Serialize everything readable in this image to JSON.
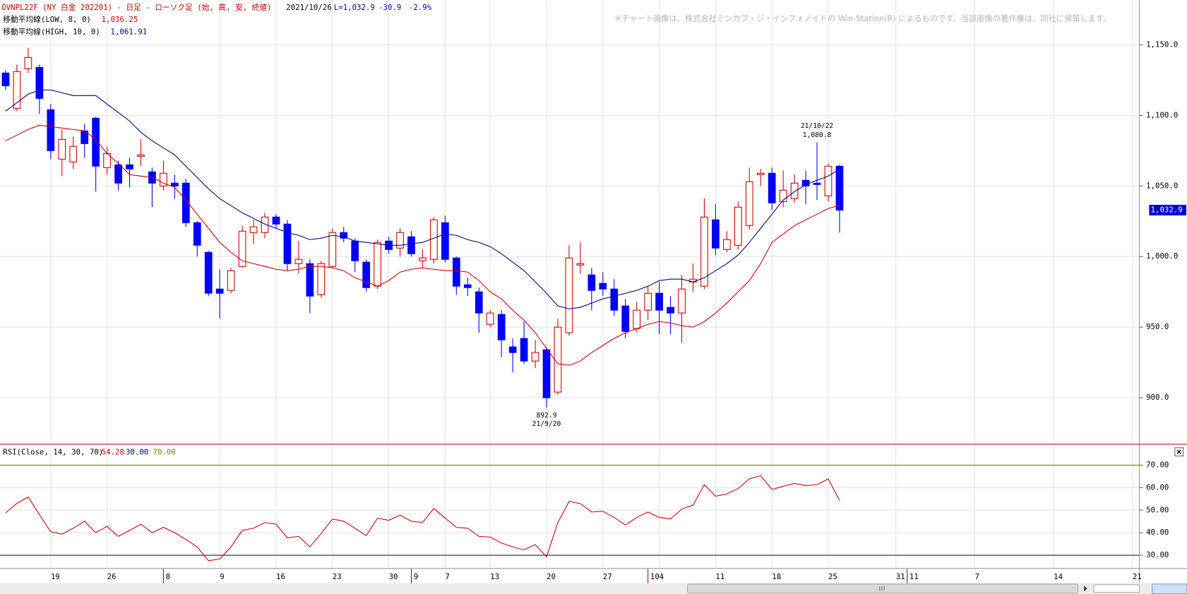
{
  "header": {
    "date": "2021/10/26",
    "last": "L=1,032.9",
    "change": "-30.9",
    "change_pct": "-2.9%"
  },
  "notice": "※チャート画像は、株式会社ミンカブ・ジ・インフォノイドの Win-Station(R) によるものです。当該画像の著作権は、同社に帰属します。",
  "chart_data": [
    {
      "type": "candlestick",
      "title": "OVNPL22F (NY 白金 202201) - 日足 - ローソク足 (始, 高, 安, 終値)",
      "up_color": "#cc0000",
      "down_color": "#0000ff",
      "open": [
        1130,
        1105,
        1133,
        1134,
        1104,
        1069,
        1067,
        1089,
        1098,
        1063,
        1065,
        1065,
        1071,
        1060,
        1050,
        1052,
        1052,
        1024,
        1003,
        977,
        976,
        993,
        1017,
        1017,
        1028,
        1023,
        995,
        995,
        973,
        993,
        1017,
        1011,
        996,
        979,
        1011,
        1006,
        1014,
        997,
        998,
        1024,
        999,
        980,
        975,
        952,
        959,
        936,
        942,
        926,
        934,
        904,
        946,
        994,
        987,
        981,
        977,
        965,
        949,
        962,
        974,
        964,
        960,
        982,
        979,
        1026,
        1005,
        1008,
        1022,
        1058,
        1059,
        1039,
        1041,
        1054,
        1052,
        1043,
        1064
      ],
      "high": [
        1132,
        1136,
        1148,
        1136,
        1108,
        1090,
        1085,
        1094,
        1099,
        1078,
        1068,
        1070,
        1083,
        1063,
        1068,
        1058,
        1055,
        1025,
        1004,
        991,
        992,
        1022,
        1026,
        1031,
        1030,
        1026,
        1011,
        998,
        997,
        1020,
        1021,
        1013,
        998,
        1012,
        1014,
        1020,
        1018,
        1005,
        1028,
        1029,
        1000,
        985,
        978,
        962,
        962,
        942,
        954,
        941,
        936,
        956,
        1008,
        1010,
        992,
        989,
        984,
        970,
        968,
        979,
        982,
        972,
        987,
        995,
        1041,
        1037,
        1018,
        1039,
        1063,
        1062,
        1063,
        1061,
        1058,
        1061,
        1080.8,
        1066,
        1065
      ],
      "low": [
        1118,
        1103,
        1130,
        1101,
        1069,
        1057,
        1062,
        1070,
        1046,
        1058,
        1047,
        1049,
        1064,
        1035,
        1047,
        1041,
        1021,
        1000,
        972,
        956,
        974,
        992,
        1009,
        1013,
        1020,
        990,
        988,
        960,
        971,
        992,
        1010,
        989,
        975,
        977,
        1002,
        1000,
        1000,
        992,
        995,
        996,
        973,
        972,
        946,
        950,
        929,
        918,
        924,
        921,
        892.9,
        902,
        944,
        988,
        962,
        972,
        958,
        942,
        946,
        955,
        945,
        945,
        939,
        975,
        977,
        1001,
        1003,
        1005,
        1019,
        1050,
        1033,
        1035,
        1038,
        1037,
        1040,
        1039,
        1017
      ],
      "close": [
        1121,
        1131,
        1141,
        1112,
        1075,
        1083,
        1078,
        1080,
        1064,
        1073,
        1052,
        1062,
        1072,
        1052,
        1059,
        1050,
        1024,
        1008,
        974,
        974,
        990,
        1018,
        1021,
        1028,
        1023,
        995,
        998,
        972,
        995,
        1017,
        1013,
        997,
        978,
        1010,
        1005,
        1017,
        1002,
        999,
        1026,
        998,
        979,
        978,
        960,
        960,
        941,
        932,
        926,
        932,
        900,
        950,
        999,
        995,
        976,
        977,
        962,
        947,
        962,
        974,
        962,
        960,
        977,
        984,
        1028,
        1006,
        1012,
        1035,
        1053,
        1059,
        1038,
        1047,
        1052,
        1050,
        1051,
        1064,
        1032.9
      ],
      "last_label": "1,032.9",
      "series": [
        {
          "name": "移動平均線(LOW, 8, 0)",
          "last_label": "1,036.25",
          "color": "#cc0000",
          "values": [
            1082,
            1086,
            1090,
            1093,
            1092,
            1091,
            1090,
            1089,
            1083,
            1073,
            1066,
            1058,
            1057,
            1056,
            1052,
            1049,
            1040,
            1030,
            1020,
            1010,
            1003,
            997,
            995,
            993,
            991,
            990,
            991,
            993,
            993,
            992,
            990,
            985,
            982,
            979,
            983,
            989,
            991,
            992,
            991,
            990,
            990,
            989,
            983,
            975,
            970,
            962,
            955,
            946,
            935,
            924,
            923,
            926,
            932,
            937,
            942,
            946,
            949,
            952,
            954,
            953,
            951,
            950,
            954,
            960,
            967,
            975,
            983,
            995,
            1010,
            1016,
            1022,
            1026,
            1030,
            1034,
            1036.25
          ]
        },
        {
          "name": "移動平均線(HIGH, 10, 0)",
          "last_label": "1,061.91",
          "color": "#000080",
          "values": [
            1103,
            1109,
            1115,
            1118,
            1118,
            1116,
            1114,
            1114,
            1114,
            1108,
            1102,
            1096,
            1088,
            1082,
            1077,
            1072,
            1064,
            1056,
            1048,
            1041,
            1036,
            1031,
            1027,
            1023,
            1020,
            1017,
            1015,
            1012,
            1013,
            1015,
            1014,
            1011,
            1010,
            1009,
            1008,
            1008,
            1009,
            1010,
            1013,
            1016,
            1015,
            1012,
            1010,
            1007,
            1002,
            996,
            990,
            982,
            974,
            965,
            963,
            964,
            967,
            970,
            972,
            974,
            976,
            979,
            983,
            984,
            984,
            982,
            985,
            990,
            995,
            1001,
            1010,
            1020,
            1030,
            1040,
            1046,
            1051,
            1054,
            1057,
            1061.91
          ]
        }
      ],
      "annotations": [
        {
          "at": 72,
          "side": "high",
          "date": "21/10/22",
          "value_label": "1,080.8"
        },
        {
          "at": 48,
          "side": "low",
          "date": "21/9/20",
          "value_label": "892.9"
        }
      ],
      "ylim": [
        867.3,
        1181.6
      ],
      "yticks": [
        {
          "value": 900,
          "label": "900.0"
        },
        {
          "value": 950,
          "label": "950.0"
        },
        {
          "value": 1000,
          "label": "1,000.0"
        },
        {
          "value": 1050,
          "label": "1,050.0"
        },
        {
          "value": 1100,
          "label": "1,100.0"
        },
        {
          "value": 1150,
          "label": "1,150.0"
        }
      ],
      "grid": true
    },
    {
      "type": "line",
      "series": [
        {
          "name": "RSI(Close, 14, 30, 70)",
          "last_label": "54.28",
          "color": "#cc0000",
          "values": [
            48.8,
            53,
            55.9,
            48,
            40.4,
            39.4,
            42,
            45.1,
            40,
            42.8,
            38.4,
            41,
            43.8,
            40,
            42.4,
            40,
            37,
            33.7,
            27.6,
            28.3,
            33.7,
            41,
            42,
            44.5,
            43.8,
            37.7,
            38.4,
            33.7,
            39.7,
            46.1,
            45.1,
            42,
            38.7,
            46.5,
            45.5,
            47.8,
            45.1,
            44.5,
            50.8,
            46.5,
            42.4,
            42,
            38.4,
            38.1,
            35.4,
            33.7,
            32.4,
            34.7,
            29.3,
            44.5,
            53.9,
            52.9,
            49.2,
            49.5,
            46.8,
            43.4,
            46.8,
            49.2,
            46.8,
            46.1,
            50.5,
            52.2,
            61.3,
            56.2,
            57.2,
            59.6,
            63.9,
            65.3,
            59.2,
            60.6,
            61.9,
            60.9,
            61.3,
            63.9,
            54.28
          ]
        }
      ],
      "levels": [
        {
          "value": 30,
          "label": "30.00",
          "color": "#000080"
        },
        {
          "value": 70,
          "label": "70.00",
          "color": "#808000"
        }
      ],
      "ylim": [
        24.3,
        79.1
      ],
      "yticks": [
        {
          "value": 30,
          "label": "30.00"
        },
        {
          "value": 40,
          "label": "40.00"
        },
        {
          "value": 50,
          "label": "50.00"
        },
        {
          "value": 60,
          "label": "60.00"
        },
        {
          "value": 70,
          "label": "70.00"
        }
      ],
      "grid": true,
      "xlim": [
        -0.5,
        100.6
      ],
      "xticks": [
        {
          "value": 4,
          "label": "19"
        },
        {
          "value": 9,
          "label": "26"
        },
        {
          "value": 19,
          "label": "9"
        },
        {
          "value": 24,
          "label": "16"
        },
        {
          "value": 29,
          "label": "23"
        },
        {
          "value": 34,
          "label": "30"
        },
        {
          "value": 39,
          "label": "7"
        },
        {
          "value": 43,
          "label": "13"
        },
        {
          "value": 48,
          "label": "20"
        },
        {
          "value": 53,
          "label": "27"
        },
        {
          "value": 58,
          "label": "4"
        },
        {
          "value": 63,
          "label": "11"
        },
        {
          "value": 68,
          "label": "18"
        },
        {
          "value": 73,
          "label": "25"
        },
        {
          "value": 79,
          "label": "31"
        },
        {
          "value": 86,
          "label": "7"
        },
        {
          "value": 93,
          "label": "14"
        },
        {
          "value": 100,
          "label": "21"
        }
      ],
      "month_ticks": [
        {
          "value": 14,
          "label": "8"
        },
        {
          "value": 36,
          "label": "9"
        },
        {
          "value": 57,
          "label": "10"
        },
        {
          "value": 80,
          "label": "11"
        }
      ]
    }
  ]
}
